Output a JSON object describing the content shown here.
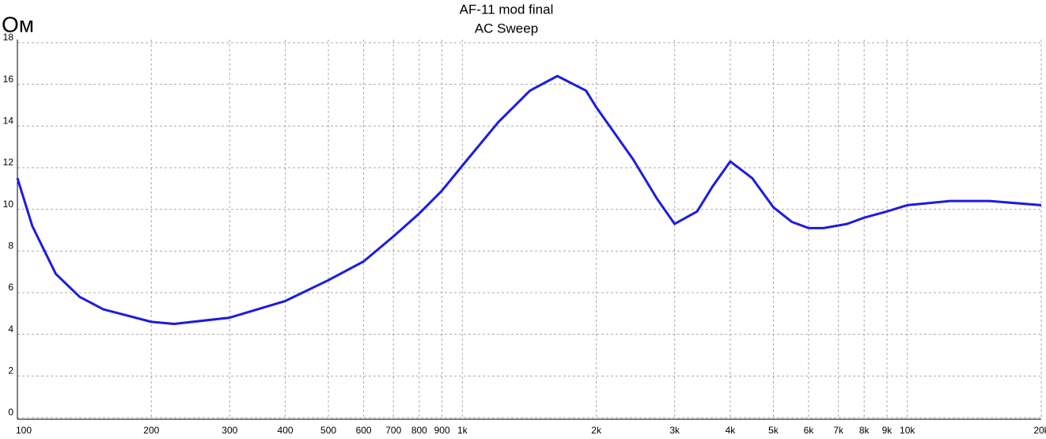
{
  "chart_data": {
    "type": "line",
    "title": "AF-11 mod final",
    "subtitle": "AC Sweep",
    "y_label": "Ом",
    "x": [
      100,
      108,
      122,
      138,
      156,
      200,
      225,
      300,
      400,
      500,
      600,
      700,
      800,
      900,
      1000,
      1206,
      1419,
      1635,
      1896,
      2000,
      2420,
      2740,
      3000,
      3370,
      3650,
      4000,
      4480,
      5000,
      5500,
      6000,
      6480,
      7320,
      8000,
      9000,
      10000,
      12470,
      15310,
      20000
    ],
    "series": [
      {
        "name": "AC Sweep",
        "color": "#1c1ce0",
        "values": [
          11.5,
          9.2,
          6.9,
          5.8,
          5.2,
          4.6,
          4.5,
          4.8,
          5.6,
          6.6,
          7.5,
          8.7,
          9.8,
          10.9,
          12.1,
          14.2,
          15.7,
          16.4,
          15.7,
          14.9,
          12.4,
          10.5,
          9.3,
          9.9,
          11.1,
          12.3,
          11.5,
          10.1,
          9.4,
          9.1,
          9.1,
          9.3,
          9.6,
          9.9,
          10.2,
          10.4,
          10.4,
          10.2
        ]
      }
    ],
    "xscale": "log",
    "xlim": [
      100,
      20000
    ],
    "xticks": [
      100,
      200,
      300,
      400,
      500,
      600,
      700,
      800,
      900,
      {
        "value": 1000,
        "label": "1k"
      },
      {
        "value": 2000,
        "label": "2k"
      },
      {
        "value": 3000,
        "label": "3k"
      },
      {
        "value": 4000,
        "label": "4k"
      },
      {
        "value": 5000,
        "label": "5k"
      },
      {
        "value": 6000,
        "label": "6k"
      },
      {
        "value": 7000,
        "label": "7k"
      },
      {
        "value": 8000,
        "label": "8k"
      },
      {
        "value": 9000,
        "label": "9k"
      },
      {
        "value": 10000,
        "label": "10k"
      },
      {
        "value": 20000,
        "label": "20k"
      }
    ],
    "ylim": [
      0,
      18
    ],
    "yticks": [
      0,
      2,
      4,
      6,
      8,
      10,
      12,
      14,
      16,
      18
    ],
    "grid": true
  }
}
